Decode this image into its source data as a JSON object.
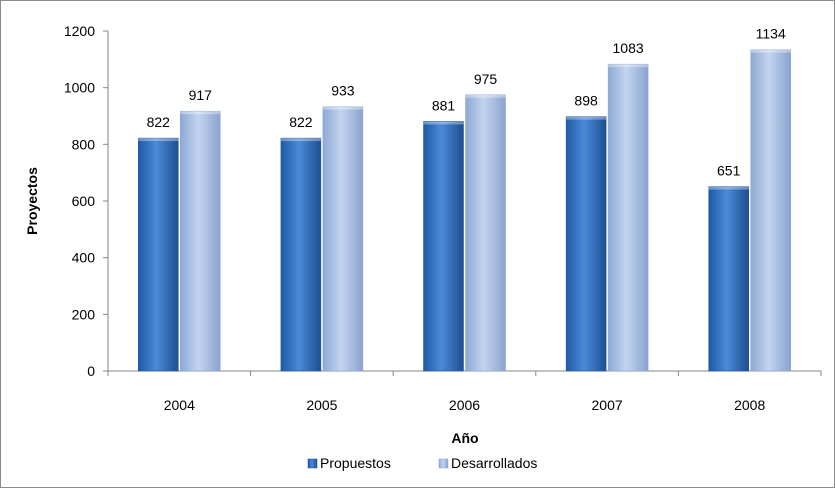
{
  "chart_data": {
    "type": "bar",
    "title": "",
    "xlabel": "Año",
    "ylabel": "Proyectos",
    "categories": [
      "2004",
      "2005",
      "2006",
      "2007",
      "2008"
    ],
    "series": [
      {
        "name": "Propuestos",
        "values": [
          822,
          822,
          881,
          898,
          651
        ],
        "color": "#2e6fbe"
      },
      {
        "name": "Desarrollados",
        "values": [
          917,
          933,
          975,
          1083,
          1134
        ],
        "color": "#a7bfe3"
      }
    ],
    "ylim": [
      0,
      1200
    ],
    "yticks": [
      "0",
      "200",
      "400",
      "600",
      "800",
      "1000",
      "1200"
    ],
    "grid": false,
    "legend_position": "bottom",
    "data_labels": true
  }
}
